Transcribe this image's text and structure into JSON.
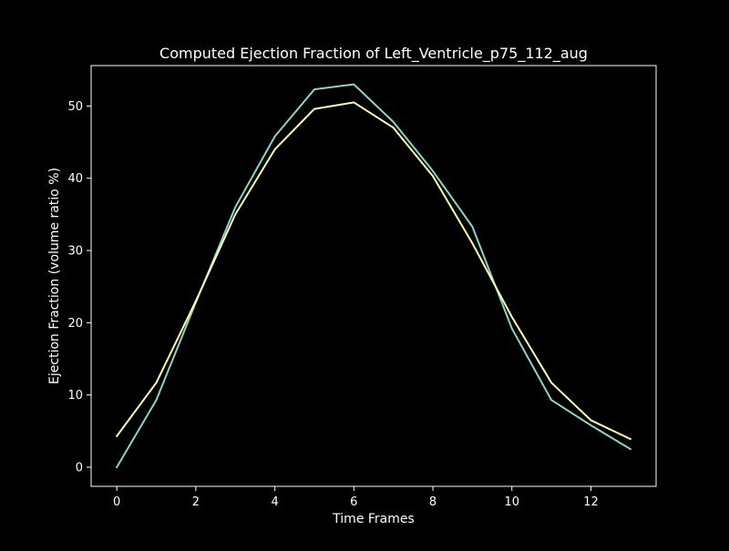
{
  "chart_data": {
    "type": "line",
    "title": "Computed Ejection Fraction of Left_Ventricle_p75_112_aug",
    "xlabel": "Time Frames",
    "ylabel": "Ejection Fraction (volume ratio %)",
    "xlim": [
      -0.65,
      13.65
    ],
    "ylim": [
      -2.65,
      55.6
    ],
    "xticks": [
      0,
      2,
      4,
      6,
      8,
      10,
      12
    ],
    "yticks": [
      0,
      10,
      20,
      30,
      40,
      50
    ],
    "grid": false,
    "x": [
      0,
      1,
      2,
      3,
      4,
      5,
      6,
      7,
      8,
      9,
      10,
      11,
      12,
      13
    ],
    "series": [
      {
        "color": "#8dd3c7",
        "values": [
          0.0,
          9.3,
          22.8,
          36.0,
          45.8,
          52.3,
          53.0,
          47.8,
          41.0,
          33.3,
          19.2,
          9.3,
          5.8,
          2.5
        ]
      },
      {
        "color": "#ffffb3",
        "values": [
          4.3,
          11.7,
          23.0,
          35.0,
          44.0,
          49.6,
          50.5,
          47.0,
          40.3,
          31.0,
          20.8,
          11.7,
          6.5,
          3.9
        ]
      }
    ]
  }
}
